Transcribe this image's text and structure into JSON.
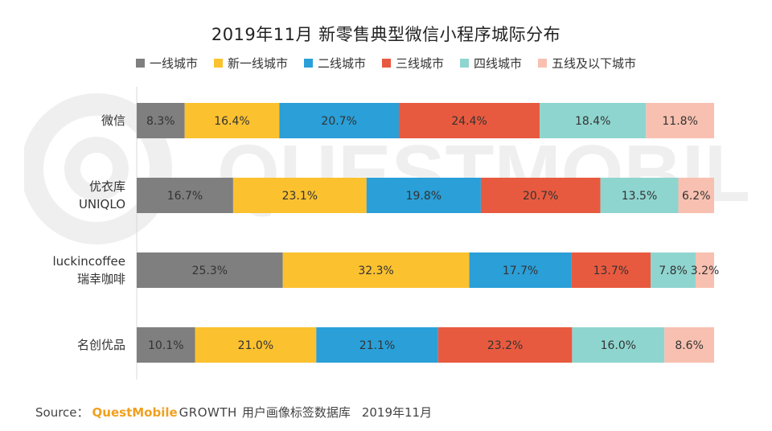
{
  "chart_data": {
    "type": "bar",
    "orientation": "horizontal",
    "stacked": true,
    "title": "2019年11月 新零售典型微信小程序城际分布",
    "categories": [
      [
        "微信"
      ],
      [
        "优衣库",
        "UNIQLO"
      ],
      [
        "luckincoffee",
        "瑞幸咖啡"
      ],
      [
        "名创优品"
      ]
    ],
    "series": [
      {
        "name": "一线城市",
        "color": "#7f7f7f",
        "values": [
          8.3,
          16.7,
          25.3,
          10.1
        ],
        "labels": [
          "8.3%",
          "16.7%",
          "25.3%",
          "10.1%"
        ]
      },
      {
        "name": "新一线城市",
        "color": "#fbc12f",
        "values": [
          16.4,
          23.1,
          32.3,
          21.0
        ],
        "labels": [
          "16.4%",
          "23.1%",
          "32.3%",
          "21.0%"
        ]
      },
      {
        "name": "二线城市",
        "color": "#2a9fd8",
        "values": [
          20.7,
          19.8,
          17.7,
          21.1
        ],
        "labels": [
          "20.7%",
          "19.8%",
          "17.7%",
          "21.1%"
        ]
      },
      {
        "name": "三线城市",
        "color": "#e85a3f",
        "values": [
          24.4,
          20.7,
          13.7,
          23.2
        ],
        "labels": [
          "24.4%",
          "20.7%",
          "13.7%",
          "23.2%"
        ]
      },
      {
        "name": "四线城市",
        "color": "#8fd5cf",
        "values": [
          18.4,
          13.5,
          7.8,
          16.0
        ],
        "labels": [
          "18.4%",
          "13.5%",
          "7.8%",
          "16.0%"
        ]
      },
      {
        "name": "五线及以下城市",
        "color": "#f8c0b0",
        "values": [
          11.8,
          6.2,
          3.2,
          8.6
        ],
        "labels": [
          "11.8%",
          "6.2%",
          "3.2%",
          "8.6%"
        ]
      }
    ],
    "xlim": [
      0,
      100
    ],
    "legend": "top-center",
    "grid": false
  },
  "source": {
    "prefix": "Source：",
    "brand": "QuestMobile",
    "growth": "GROWTH",
    "description": "用户画像标签数据库",
    "date": "2019年11月"
  },
  "watermark": "QUESTMOBILE"
}
